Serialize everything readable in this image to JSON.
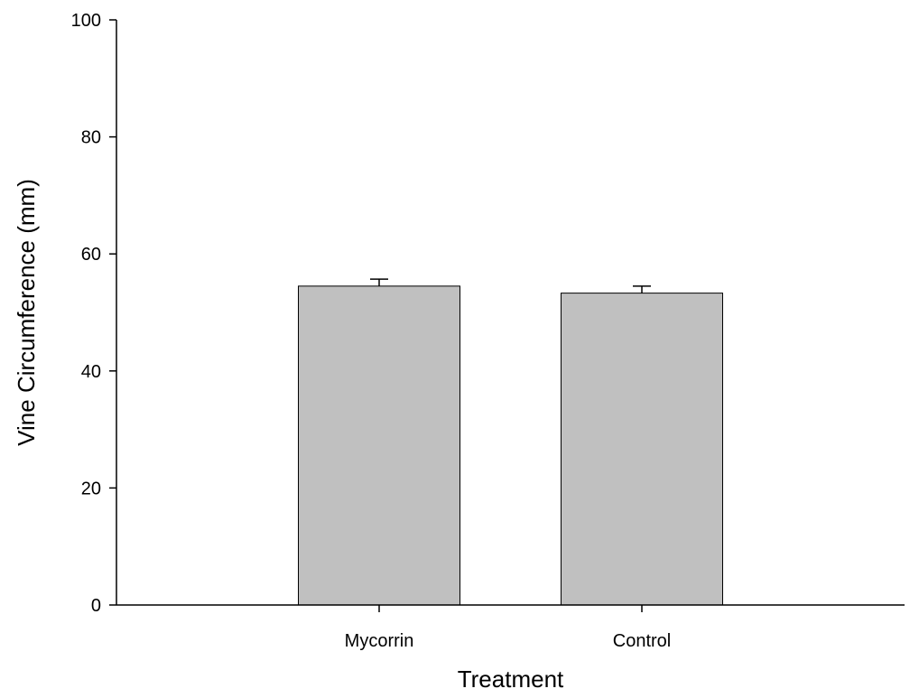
{
  "chart_data": {
    "type": "bar",
    "title": "",
    "xlabel": "Treatment",
    "ylabel": "Vine Circumference (mm)",
    "categories": [
      "Mycorrin",
      "Control"
    ],
    "values": [
      54.5,
      53.3
    ],
    "errors": [
      1.2,
      1.2
    ],
    "ylim": [
      0,
      100
    ],
    "yticks": [
      0,
      20,
      40,
      60,
      80,
      100
    ],
    "bar_color": "#c0c0c0",
    "grid": false,
    "legend": "none"
  }
}
